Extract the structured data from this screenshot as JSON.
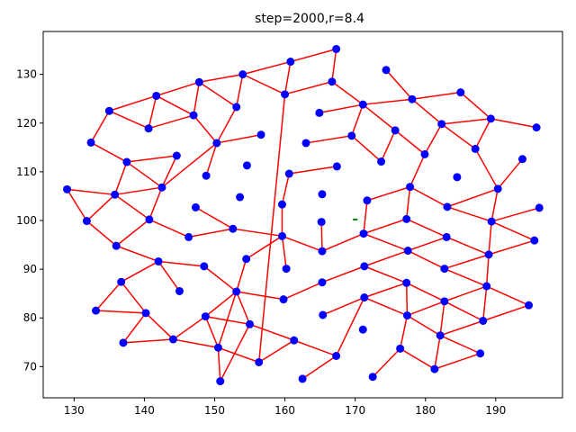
{
  "chart_data": {
    "type": "scatter",
    "title": "step=2000,r=8.4",
    "xlabel": "",
    "ylabel": "",
    "xlim": [
      125.6,
      199.5
    ],
    "ylim": [
      63.6,
      138.8
    ],
    "xticks": [
      130,
      140,
      150,
      160,
      170,
      180,
      190
    ],
    "yticks": [
      70,
      80,
      90,
      100,
      110,
      120,
      130
    ],
    "grid": false,
    "colors": {
      "points": "#0000ff",
      "edges": "#ff0000",
      "marker": "#008000"
    },
    "points": [
      [
        129.0,
        106.4
      ],
      [
        131.8,
        99.9
      ],
      [
        132.4,
        116.0
      ],
      [
        133.1,
        81.5
      ],
      [
        135.0,
        122.5
      ],
      [
        135.8,
        105.3
      ],
      [
        136.0,
        94.8
      ],
      [
        136.7,
        87.4
      ],
      [
        137.0,
        74.9
      ],
      [
        137.5,
        112.0
      ],
      [
        140.2,
        81.0
      ],
      [
        140.6,
        118.9
      ],
      [
        140.7,
        100.2
      ],
      [
        141.7,
        125.6
      ],
      [
        142.0,
        91.6
      ],
      [
        142.5,
        106.8
      ],
      [
        144.1,
        75.6
      ],
      [
        144.6,
        113.3
      ],
      [
        145.0,
        85.5
      ],
      [
        146.3,
        96.6
      ],
      [
        147.0,
        121.6
      ],
      [
        147.3,
        102.7
      ],
      [
        147.8,
        128.4
      ],
      [
        148.5,
        90.6
      ],
      [
        148.7,
        80.3
      ],
      [
        148.8,
        109.2
      ],
      [
        150.3,
        115.9
      ],
      [
        150.5,
        73.9
      ],
      [
        150.8,
        67.0
      ],
      [
        152.6,
        98.3
      ],
      [
        153.1,
        85.4
      ],
      [
        153.1,
        123.3
      ],
      [
        153.6,
        104.8
      ],
      [
        154.0,
        130.0
      ],
      [
        154.5,
        92.1
      ],
      [
        154.6,
        111.3
      ],
      [
        155.0,
        78.7
      ],
      [
        156.3,
        70.9
      ],
      [
        156.6,
        117.6
      ],
      [
        159.6,
        96.8
      ],
      [
        159.8,
        83.8
      ],
      [
        160.0,
        125.9
      ],
      [
        159.6,
        103.3
      ],
      [
        160.2,
        90.1
      ],
      [
        160.6,
        109.6
      ],
      [
        160.8,
        132.6
      ],
      [
        161.3,
        75.4
      ],
      [
        162.5,
        67.5
      ],
      [
        163.0,
        115.9
      ],
      [
        164.9,
        122.1
      ],
      [
        165.3,
        105.4
      ],
      [
        165.2,
        99.7
      ],
      [
        165.3,
        93.7
      ],
      [
        165.3,
        87.3
      ],
      [
        165.4,
        80.6
      ],
      [
        166.7,
        128.5
      ],
      [
        167.3,
        135.2
      ],
      [
        167.4,
        111.1
      ],
      [
        167.3,
        72.2
      ],
      [
        169.5,
        117.4
      ],
      [
        171.1,
        77.6
      ],
      [
        171.1,
        123.8
      ],
      [
        171.2,
        97.3
      ],
      [
        171.3,
        84.2
      ],
      [
        171.3,
        90.6
      ],
      [
        171.7,
        104.1
      ],
      [
        172.5,
        67.9
      ],
      [
        173.7,
        112.1
      ],
      [
        174.4,
        130.9
      ],
      [
        175.7,
        118.5
      ],
      [
        176.4,
        73.7
      ],
      [
        177.3,
        87.2
      ],
      [
        177.3,
        100.3
      ],
      [
        177.4,
        80.5
      ],
      [
        177.5,
        93.8
      ],
      [
        177.8,
        106.9
      ],
      [
        178.1,
        124.9
      ],
      [
        179.9,
        113.6
      ],
      [
        181.3,
        69.5
      ],
      [
        182.3,
        119.8
      ],
      [
        182.1,
        76.4
      ],
      [
        182.7,
        90.1
      ],
      [
        182.7,
        83.4
      ],
      [
        183.0,
        96.6
      ],
      [
        183.1,
        102.8
      ],
      [
        184.5,
        108.9
      ],
      [
        185.0,
        126.3
      ],
      [
        187.1,
        114.7
      ],
      [
        187.8,
        72.7
      ],
      [
        188.2,
        79.4
      ],
      [
        188.7,
        86.5
      ],
      [
        189.0,
        93.0
      ],
      [
        189.4,
        99.8
      ],
      [
        189.3,
        120.9
      ],
      [
        190.3,
        106.5
      ],
      [
        193.8,
        112.6
      ],
      [
        194.7,
        82.6
      ],
      [
        195.5,
        95.9
      ],
      [
        195.8,
        119.1
      ],
      [
        196.2,
        102.6
      ]
    ],
    "edges": [
      [
        0,
        1
      ],
      [
        0,
        5
      ],
      [
        1,
        5
      ],
      [
        1,
        6
      ],
      [
        2,
        4
      ],
      [
        2,
        9
      ],
      [
        3,
        7
      ],
      [
        3,
        10
      ],
      [
        4,
        11
      ],
      [
        4,
        13
      ],
      [
        5,
        9
      ],
      [
        5,
        12
      ],
      [
        5,
        15
      ],
      [
        6,
        12
      ],
      [
        6,
        14
      ],
      [
        7,
        10
      ],
      [
        7,
        14
      ],
      [
        8,
        10
      ],
      [
        8,
        16
      ],
      [
        9,
        15
      ],
      [
        9,
        17
      ],
      [
        10,
        16
      ],
      [
        11,
        13
      ],
      [
        11,
        20
      ],
      [
        12,
        15
      ],
      [
        12,
        19
      ],
      [
        13,
        20
      ],
      [
        13,
        22
      ],
      [
        14,
        18
      ],
      [
        14,
        23
      ],
      [
        15,
        17
      ],
      [
        15,
        26
      ],
      [
        16,
        24
      ],
      [
        16,
        27
      ],
      [
        19,
        29
      ],
      [
        20,
        22
      ],
      [
        20,
        26
      ],
      [
        21,
        29
      ],
      [
        22,
        31
      ],
      [
        22,
        33
      ],
      [
        23,
        30
      ],
      [
        24,
        27
      ],
      [
        24,
        30
      ],
      [
        24,
        36
      ],
      [
        25,
        26
      ],
      [
        26,
        31
      ],
      [
        26,
        38
      ],
      [
        27,
        28
      ],
      [
        27,
        30
      ],
      [
        27,
        37
      ],
      [
        28,
        36
      ],
      [
        29,
        39
      ],
      [
        30,
        34
      ],
      [
        30,
        36
      ],
      [
        30,
        40
      ],
      [
        31,
        33
      ],
      [
        33,
        41
      ],
      [
        33,
        45
      ],
      [
        34,
        39
      ],
      [
        36,
        46
      ],
      [
        37,
        41
      ],
      [
        37,
        46
      ],
      [
        39,
        42
      ],
      [
        39,
        43
      ],
      [
        39,
        52
      ],
      [
        40,
        53
      ],
      [
        41,
        45
      ],
      [
        41,
        55
      ],
      [
        42,
        44
      ],
      [
        44,
        57
      ],
      [
        45,
        56
      ],
      [
        46,
        58
      ],
      [
        47,
        58
      ],
      [
        48,
        59
      ],
      [
        49,
        61
      ],
      [
        51,
        52
      ],
      [
        52,
        62
      ],
      [
        53,
        64
      ],
      [
        54,
        63
      ],
      [
        55,
        56
      ],
      [
        55,
        61
      ],
      [
        58,
        63
      ],
      [
        59,
        61
      ],
      [
        59,
        67
      ],
      [
        61,
        69
      ],
      [
        61,
        76
      ],
      [
        62,
        65
      ],
      [
        62,
        72
      ],
      [
        62,
        74
      ],
      [
        63,
        71
      ],
      [
        63,
        73
      ],
      [
        64,
        71
      ],
      [
        64,
        74
      ],
      [
        65,
        75
      ],
      [
        66,
        70
      ],
      [
        67,
        69
      ],
      [
        68,
        76
      ],
      [
        69,
        77
      ],
      [
        70,
        73
      ],
      [
        70,
        78
      ],
      [
        71,
        73
      ],
      [
        71,
        82
      ],
      [
        72,
        75
      ],
      [
        72,
        83
      ],
      [
        73,
        80
      ],
      [
        73,
        82
      ],
      [
        74,
        81
      ],
      [
        74,
        83
      ],
      [
        75,
        77
      ],
      [
        75,
        84
      ],
      [
        76,
        79
      ],
      [
        76,
        86
      ],
      [
        77,
        79
      ],
      [
        78,
        80
      ],
      [
        78,
        88
      ],
      [
        79,
        87
      ],
      [
        79,
        93
      ],
      [
        80,
        82
      ],
      [
        80,
        88
      ],
      [
        80,
        89
      ],
      [
        81,
        90
      ],
      [
        81,
        91
      ],
      [
        82,
        89
      ],
      [
        82,
        90
      ],
      [
        83,
        91
      ],
      [
        84,
        92
      ],
      [
        84,
        94
      ],
      [
        86,
        93
      ],
      [
        87,
        93
      ],
      [
        87,
        94
      ],
      [
        89,
        90
      ],
      [
        89,
        96
      ],
      [
        90,
        91
      ],
      [
        90,
        96
      ],
      [
        91,
        92
      ],
      [
        91,
        97
      ],
      [
        92,
        94
      ],
      [
        92,
        99
      ],
      [
        92,
        97
      ],
      [
        93,
        98
      ],
      [
        94,
        95
      ]
    ],
    "marker": {
      "x": 170.0,
      "y": 100.2,
      "symbol": "-"
    }
  }
}
